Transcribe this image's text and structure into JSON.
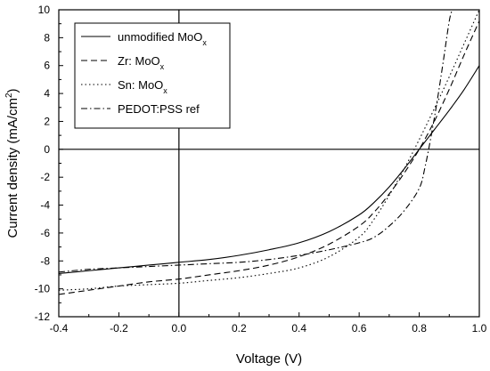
{
  "chart_data": {
    "type": "line",
    "title": "",
    "xlabel": "Voltage (V)",
    "ylabel_main": "Current density (mA/cm",
    "ylabel_sup": "2",
    "ylabel_end": ")",
    "xlim": [
      -0.4,
      1.0
    ],
    "ylim": [
      -12,
      10
    ],
    "x_ticks": [
      -0.4,
      -0.2,
      0.0,
      0.2,
      0.4,
      0.6,
      0.8,
      1.0
    ],
    "x_tick_labels": [
      "-0.4",
      "-0.2",
      "0.0",
      "0.2",
      "0.4",
      "0.6",
      "0.8",
      "1.0"
    ],
    "y_ticks": [
      10,
      8,
      6,
      4,
      2,
      0,
      -2,
      -4,
      -6,
      -8,
      -10,
      -12
    ],
    "y_tick_labels": [
      "10",
      "8",
      "6",
      "4",
      "2",
      "0",
      "-2",
      "-4",
      "-6",
      "-8",
      "-10",
      "-12"
    ],
    "grid": false,
    "reference_lines": {
      "x": 0,
      "y": 0
    },
    "legend_position": "top-left",
    "series": [
      {
        "name": "unmodified MoO",
        "name_sub": "x",
        "style": "solid",
        "x": [
          -0.4,
          -0.3,
          -0.2,
          -0.1,
          0.0,
          0.1,
          0.2,
          0.3,
          0.4,
          0.5,
          0.6,
          0.65,
          0.7,
          0.75,
          0.8,
          0.85,
          0.9,
          0.95,
          1.0
        ],
        "y": [
          -8.9,
          -8.7,
          -8.5,
          -8.3,
          -8.1,
          -7.9,
          -7.6,
          -7.2,
          -6.7,
          -5.9,
          -4.7,
          -3.8,
          -2.7,
          -1.4,
          0.0,
          1.4,
          2.8,
          4.3,
          6.0
        ]
      },
      {
        "name": "Zr: MoO",
        "name_sub": "x",
        "style": "dashed",
        "x": [
          -0.4,
          -0.3,
          -0.2,
          -0.1,
          0.0,
          0.1,
          0.2,
          0.3,
          0.4,
          0.5,
          0.6,
          0.65,
          0.7,
          0.75,
          0.8,
          0.85,
          0.9,
          0.95,
          1.0
        ],
        "y": [
          -10.4,
          -10.1,
          -9.8,
          -9.5,
          -9.3,
          -9.0,
          -8.7,
          -8.3,
          -7.7,
          -6.8,
          -5.5,
          -4.5,
          -3.2,
          -1.7,
          0.0,
          2.0,
          4.3,
          6.8,
          9.2
        ]
      },
      {
        "name": "Sn: MoO",
        "name_sub": "x",
        "style": "dotted",
        "x": [
          -0.4,
          -0.3,
          -0.2,
          -0.1,
          0.0,
          0.1,
          0.2,
          0.3,
          0.4,
          0.5,
          0.6,
          0.65,
          0.7,
          0.75,
          0.8,
          0.85,
          0.9,
          0.95,
          1.0
        ],
        "y": [
          -10.1,
          -10.0,
          -9.8,
          -9.7,
          -9.6,
          -9.4,
          -9.2,
          -8.9,
          -8.5,
          -7.7,
          -6.3,
          -5.0,
          -3.3,
          -1.4,
          0.7,
          2.9,
          5.2,
          7.6,
          10.0
        ]
      },
      {
        "name": "PEDOT:PSS ref",
        "name_sub": "",
        "style": "dashdot",
        "x": [
          -0.4,
          -0.3,
          -0.2,
          -0.1,
          0.0,
          0.1,
          0.2,
          0.3,
          0.4,
          0.5,
          0.6,
          0.65,
          0.7,
          0.75,
          0.8,
          0.82,
          0.84,
          0.86,
          0.88,
          0.9,
          0.91
        ],
        "y": [
          -8.8,
          -8.6,
          -8.5,
          -8.4,
          -8.3,
          -8.2,
          -8.1,
          -7.9,
          -7.6,
          -7.2,
          -6.7,
          -6.3,
          -5.5,
          -4.4,
          -2.8,
          -1.2,
          1.0,
          3.5,
          6.3,
          9.2,
          10.0
        ]
      }
    ]
  }
}
